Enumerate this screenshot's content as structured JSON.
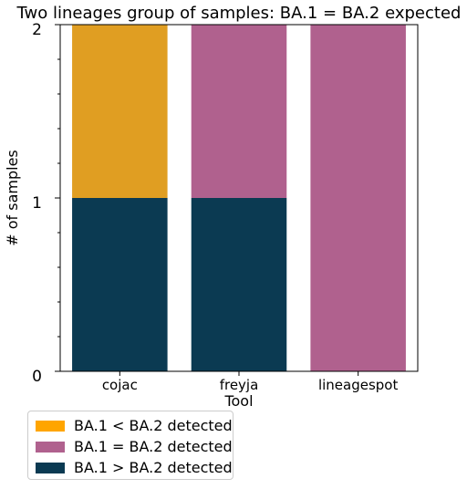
{
  "chart_data": {
    "type": "bar",
    "stacked": true,
    "title": "Two lineages group of samples: BA.1 = BA.2 expected",
    "xlabel": "Tool",
    "ylabel": "# of samples",
    "categories": [
      "cojac",
      "freyja",
      "lineagespot"
    ],
    "ylim": [
      0,
      2
    ],
    "yticks": [
      "0",
      "1",
      "2"
    ],
    "series": [
      {
        "name": "BA.1 > BA.2 detected",
        "color": "#0b3a52",
        "values": [
          1,
          1,
          0
        ]
      },
      {
        "name": "BA.1 = BA.2 detected",
        "color": "#b0618e",
        "values": [
          0,
          1,
          2
        ]
      },
      {
        "name": "BA.1 < BA.2 detected",
        "color": "#e09e22",
        "values": [
          1,
          0,
          0
        ]
      }
    ],
    "legend": {
      "position": "below",
      "entries": [
        {
          "label": "BA.1 < BA.2 detected",
          "color": "#ffa500"
        },
        {
          "label": "BA.1 = BA.2 detected",
          "color": "#b0618e"
        },
        {
          "label": "BA.1 > BA.2 detected",
          "color": "#0b3a52"
        }
      ]
    },
    "grid": false
  }
}
